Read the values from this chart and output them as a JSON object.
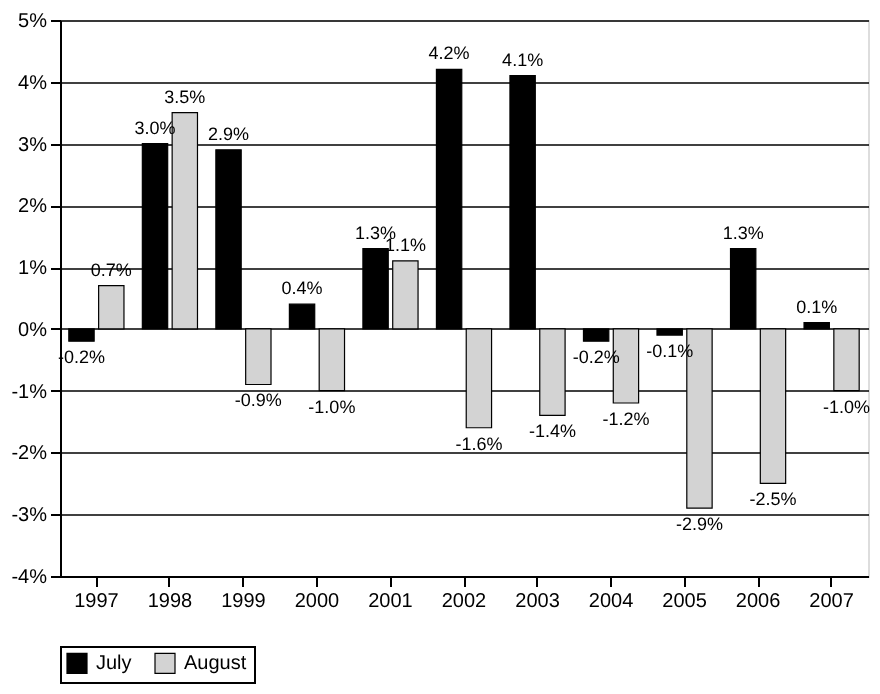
{
  "chart_data": {
    "type": "bar",
    "categories": [
      "1997",
      "1998",
      "1999",
      "2000",
      "2001",
      "2002",
      "2003",
      "2004",
      "2005",
      "2006",
      "2007"
    ],
    "series": [
      {
        "name": "July",
        "color": "#000000",
        "values": [
          -0.2,
          3.0,
          2.9,
          0.4,
          1.3,
          4.2,
          4.1,
          -0.2,
          -0.1,
          1.3,
          0.1
        ],
        "value_labels": [
          "-0.2%",
          "3.0%",
          "2.9%",
          "0.4%",
          "1.3%",
          "4.2%",
          "4.1%",
          "-0.2%",
          "-0.1%",
          "1.3%",
          "0.1%"
        ]
      },
      {
        "name": "August",
        "color": "#d3d3d3",
        "values": [
          0.7,
          3.5,
          -0.9,
          -1.0,
          1.1,
          -1.6,
          -1.4,
          -1.2,
          -2.9,
          -2.5,
          -1.0
        ],
        "value_labels": [
          "0.7%",
          "3.5%",
          "-0.9%",
          "-1.0%",
          "1.1%",
          "-1.6%",
          "-1.4%",
          "-1.2%",
          "-2.9%",
          "-2.5%",
          "-1.0%"
        ]
      }
    ],
    "ylim": [
      -4,
      5
    ],
    "yticks": [
      {
        "value": -4,
        "label": "-4%"
      },
      {
        "value": -3,
        "label": "-3%"
      },
      {
        "value": -2,
        "label": "-2%"
      },
      {
        "value": -1,
        "label": "-1%"
      },
      {
        "value": 0,
        "label": "0%"
      },
      {
        "value": 1,
        "label": "1%"
      },
      {
        "value": 2,
        "label": "2%"
      },
      {
        "value": 3,
        "label": "3%"
      },
      {
        "value": 4,
        "label": "4%"
      },
      {
        "value": 5,
        "label": "5%"
      }
    ],
    "grid": "y",
    "legend": "bottom"
  }
}
